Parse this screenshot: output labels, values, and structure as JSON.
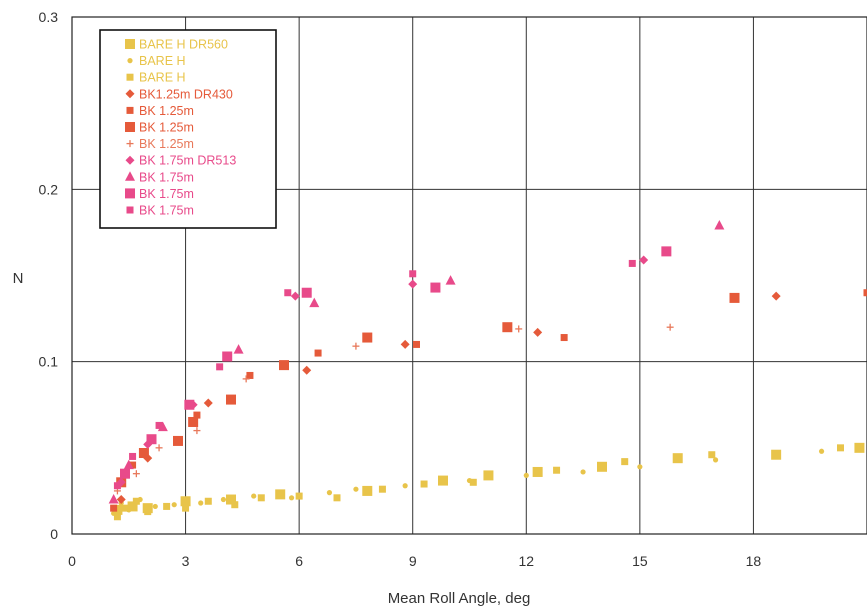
{
  "chart_data": {
    "type": "scatter",
    "xlabel": "Mean Roll Angle, deg",
    "ylabel": "N",
    "xlim": [
      0,
      21
    ],
    "ylim": [
      0,
      0.3
    ],
    "x_ticks": [
      0,
      3,
      6,
      9,
      12,
      15,
      18
    ],
    "x_tick_labels": [
      "0",
      "3",
      "6",
      "9",
      "12",
      "15",
      "18"
    ],
    "y_ticks": [
      0,
      0.1,
      0.2,
      0.3
    ],
    "y_tick_labels": [
      "0",
      "0.1",
      "0.2",
      "0.3"
    ],
    "grid": true,
    "legend_position": "top-left",
    "series": [
      {
        "name": "BARE H DR560",
        "color": "#e8c44a",
        "marker": "square-large",
        "x": [
          1.2,
          1.6,
          2.0,
          3.0,
          4.2,
          5.5,
          7.8,
          9.8,
          11.0,
          12.3,
          14.0,
          16.0,
          18.6,
          20.8
        ],
        "y": [
          0.014,
          0.016,
          0.015,
          0.019,
          0.02,
          0.023,
          0.025,
          0.031,
          0.034,
          0.036,
          0.039,
          0.044,
          0.046,
          0.05
        ]
      },
      {
        "name": "BARE H",
        "color": "#e8c44a",
        "marker": "dot",
        "x": [
          1.1,
          1.3,
          1.5,
          1.8,
          2.2,
          2.7,
          3.4,
          4.0,
          4.8,
          5.8,
          6.8,
          7.5,
          8.8,
          10.5,
          12.0,
          13.5,
          15.0,
          17.0,
          19.8
        ],
        "y": [
          0.012,
          0.018,
          0.014,
          0.02,
          0.016,
          0.017,
          0.018,
          0.02,
          0.022,
          0.021,
          0.024,
          0.026,
          0.028,
          0.031,
          0.034,
          0.036,
          0.039,
          0.043,
          0.048
        ]
      },
      {
        "name": "BARE H",
        "color": "#e8c44a",
        "marker": "square-small",
        "x": [
          1.2,
          1.4,
          1.7,
          2.0,
          2.5,
          3.0,
          3.6,
          4.3,
          5.0,
          6.0,
          7.0,
          8.2,
          9.3,
          10.6,
          12.8,
          14.6,
          16.9,
          20.3
        ],
        "y": [
          0.01,
          0.015,
          0.019,
          0.013,
          0.016,
          0.015,
          0.019,
          0.017,
          0.021,
          0.022,
          0.021,
          0.026,
          0.029,
          0.03,
          0.037,
          0.042,
          0.046,
          0.05
        ]
      },
      {
        "name": "BK1.25m DR430",
        "color": "#e55a3a",
        "marker": "diamond",
        "x": [
          1.3,
          2.0,
          3.6,
          6.2,
          8.8,
          12.3,
          18.6
        ],
        "y": [
          0.02,
          0.044,
          0.076,
          0.095,
          0.11,
          0.117,
          0.138
        ]
      },
      {
        "name": "BK 1.25m",
        "color": "#e55a3a",
        "marker": "square-small",
        "x": [
          1.1,
          1.6,
          3.3,
          4.7,
          6.5,
          9.1,
          13.0,
          21.0
        ],
        "y": [
          0.015,
          0.04,
          0.069,
          0.092,
          0.105,
          0.11,
          0.114,
          0.14
        ]
      },
      {
        "name": "BK 1.25m",
        "color": "#e55a3a",
        "marker": "square-large",
        "x": [
          1.3,
          1.9,
          2.8,
          3.2,
          4.2,
          5.6,
          7.8,
          11.5,
          17.5
        ],
        "y": [
          0.03,
          0.047,
          0.054,
          0.065,
          0.078,
          0.098,
          0.114,
          0.12,
          0.137
        ]
      },
      {
        "name": "BK 1.25m",
        "color": "#e8785a",
        "marker": "plus",
        "x": [
          1.2,
          1.7,
          2.3,
          3.3,
          4.6,
          7.5,
          11.8,
          15.8
        ],
        "y": [
          0.025,
          0.035,
          0.05,
          0.06,
          0.09,
          0.109,
          0.119,
          0.12
        ]
      },
      {
        "name": "BK 1.75m DR513",
        "color": "#e84a8a",
        "marker": "diamond",
        "x": [
          1.3,
          2.0,
          3.2,
          5.9,
          9.0,
          15.1
        ],
        "y": [
          0.03,
          0.052,
          0.075,
          0.138,
          0.145,
          0.159
        ]
      },
      {
        "name": "BK 1.75m",
        "color": "#e84a8a",
        "marker": "triangle",
        "x": [
          1.1,
          1.5,
          2.4,
          4.4,
          6.4,
          10.0,
          17.1
        ],
        "y": [
          0.02,
          0.04,
          0.062,
          0.107,
          0.134,
          0.147,
          0.179
        ]
      },
      {
        "name": "BK 1.75m",
        "color": "#e84a8a",
        "marker": "square-large",
        "x": [
          1.4,
          2.1,
          3.1,
          4.1,
          6.2,
          9.6,
          15.7
        ],
        "y": [
          0.035,
          0.055,
          0.075,
          0.103,
          0.14,
          0.143,
          0.164
        ]
      },
      {
        "name": "BK 1.75m",
        "color": "#e84a8a",
        "marker": "square-small",
        "x": [
          1.2,
          1.6,
          2.3,
          3.9,
          5.7,
          9.0,
          14.8
        ],
        "y": [
          0.028,
          0.045,
          0.063,
          0.097,
          0.14,
          0.151,
          0.157
        ]
      }
    ]
  }
}
